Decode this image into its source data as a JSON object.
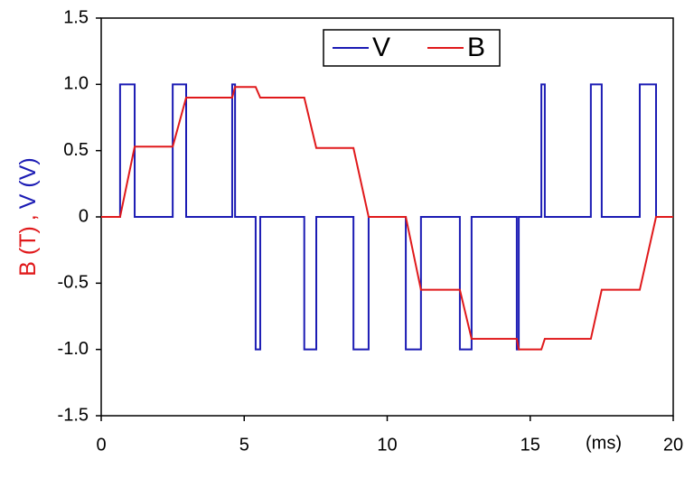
{
  "chart_data": {
    "type": "line",
    "ylabel_parts": [
      {
        "text": "B (T)",
        "color": "#e0191b"
      },
      {
        "text": ",",
        "color": "#e0191b"
      },
      {
        "text": "V (V)",
        "color": "#1b1bb4"
      }
    ],
    "xunit": "(ms)",
    "xlim": [
      0,
      20
    ],
    "xticks": [
      0,
      5,
      10,
      15,
      20
    ],
    "ylim": [
      -1.5,
      1.5
    ],
    "yticks": [
      {
        "value": -1.5,
        "label": "-1.5"
      },
      {
        "value": -1.0,
        "label": "-1.0"
      },
      -0.5,
      0,
      0.5,
      {
        "value": 1.0,
        "label": "1.0"
      },
      1.5
    ],
    "legend": "upper center",
    "series": [
      {
        "name": "V",
        "color": "#1b1bb4",
        "x": [
          0,
          0.66,
          0.66,
          1.17,
          1.17,
          2.5,
          2.5,
          2.97,
          2.97,
          4.58,
          4.58,
          4.68,
          4.68,
          5.4,
          5.4,
          5.56,
          5.56,
          7.1,
          7.1,
          7.52,
          7.52,
          8.82,
          8.82,
          9.35,
          9.35,
          10.65,
          10.65,
          11.18,
          11.18,
          12.54,
          12.54,
          12.95,
          12.95,
          14.53,
          14.53,
          14.6,
          14.6,
          15.39,
          15.39,
          15.51,
          15.51,
          17.12,
          17.12,
          17.5,
          17.5,
          18.83,
          18.83,
          19.4,
          19.4,
          20
        ],
        "values": [
          0,
          0,
          1,
          1,
          0,
          0,
          1,
          1,
          0,
          0,
          1,
          1,
          0,
          0,
          -1,
          -1,
          0,
          0,
          -1,
          -1,
          0,
          0,
          -1,
          -1,
          0,
          0,
          -1,
          -1,
          0,
          0,
          -1,
          -1,
          0,
          0,
          -1,
          -1,
          0,
          0,
          1,
          1,
          0,
          0,
          1,
          1,
          0,
          0,
          1,
          1,
          0,
          0
        ]
      },
      {
        "name": "B",
        "color": "#e0191b",
        "x": [
          0,
          0.66,
          1.17,
          2.5,
          2.97,
          4.58,
          4.68,
          5.4,
          5.56,
          7.1,
          7.52,
          8.82,
          9.35,
          10.65,
          11.18,
          12.54,
          12.95,
          14.53,
          14.6,
          15.39,
          15.51,
          17.12,
          17.5,
          18.83,
          19.4,
          20
        ],
        "values": [
          0,
          0,
          0.53,
          0.53,
          0.9,
          0.9,
          0.98,
          0.98,
          0.9,
          0.9,
          0.52,
          0.52,
          0,
          0,
          -0.55,
          -0.55,
          -0.92,
          -0.92,
          -1.0,
          -1.0,
          -0.92,
          -0.92,
          -0.55,
          -0.55,
          0,
          0
        ]
      }
    ]
  }
}
